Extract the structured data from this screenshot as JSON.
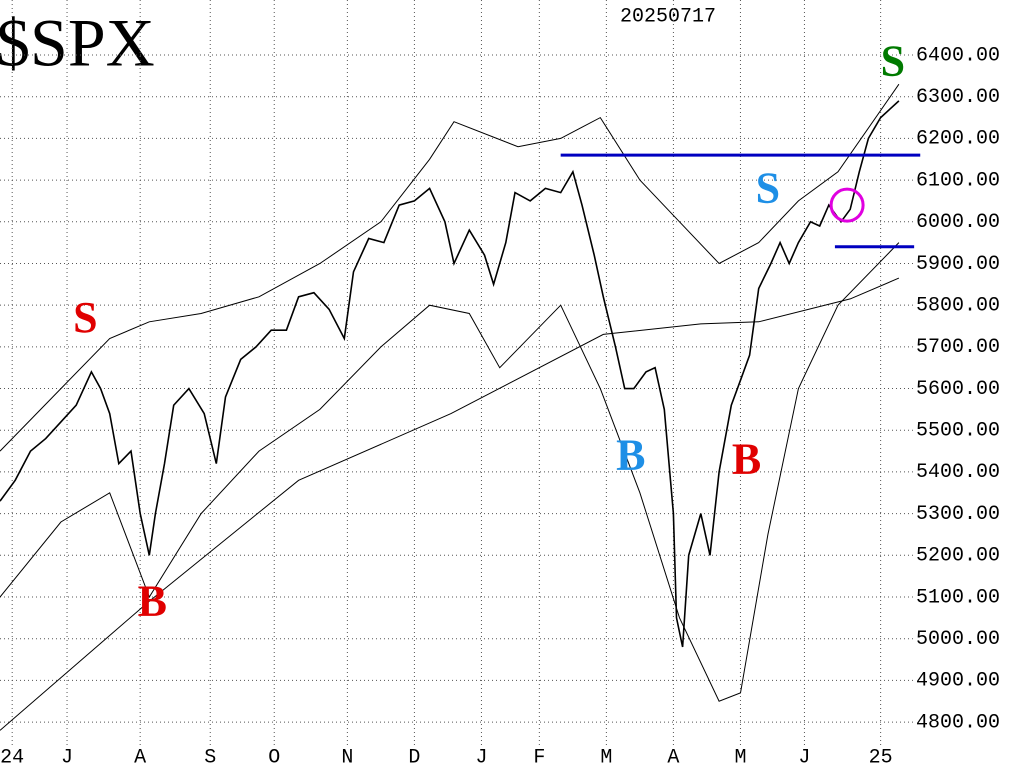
{
  "chart_data": {
    "type": "line",
    "title": "$SPX",
    "subtitle": "20250717",
    "xlim": [
      0,
      297
    ],
    "ylim": [
      4745,
      6532
    ],
    "xticks": [
      {
        "value": 4,
        "label": "24"
      },
      {
        "value": 22,
        "label": "J"
      },
      {
        "value": 46,
        "label": "A"
      },
      {
        "value": 69,
        "label": "S"
      },
      {
        "value": 90,
        "label": "O"
      },
      {
        "value": 114,
        "label": "N"
      },
      {
        "value": 136,
        "label": "D"
      },
      {
        "value": 158,
        "label": "J"
      },
      {
        "value": 177,
        "label": "F"
      },
      {
        "value": 199,
        "label": "M"
      },
      {
        "value": 221,
        "label": "A"
      },
      {
        "value": 243,
        "label": "M"
      },
      {
        "value": 264,
        "label": "J"
      },
      {
        "value": 289,
        "label": "25"
      }
    ],
    "yticks": [
      {
        "value": 4800,
        "label": "4800.00"
      },
      {
        "value": 4900,
        "label": "4900.00"
      },
      {
        "value": 5000,
        "label": "5000.00"
      },
      {
        "value": 5100,
        "label": "5100.00"
      },
      {
        "value": 5200,
        "label": "5200.00"
      },
      {
        "value": 5300,
        "label": "5300.00"
      },
      {
        "value": 5400,
        "label": "5400.00"
      },
      {
        "value": 5500,
        "label": "5500.00"
      },
      {
        "value": 5600,
        "label": "5600.00"
      },
      {
        "value": 5700,
        "label": "5700.00"
      },
      {
        "value": 5800,
        "label": "5800.00"
      },
      {
        "value": 5900,
        "label": "5900.00"
      },
      {
        "value": 6000,
        "label": "6000.00"
      },
      {
        "value": 6100,
        "label": "6100.00"
      },
      {
        "value": 6200,
        "label": "6200.00"
      },
      {
        "value": 6300,
        "label": "6300.00"
      },
      {
        "value": 6400,
        "label": "6400.00"
      }
    ],
    "grid": true,
    "series": [
      {
        "color": "#000000",
        "x": [
          0,
          5,
          10,
          15,
          20,
          25,
          30,
          33,
          36,
          39,
          43,
          46,
          49,
          51,
          54,
          57,
          62,
          67,
          71,
          74,
          79,
          84,
          89,
          94,
          98,
          103,
          108,
          113,
          116,
          121,
          126,
          131,
          136,
          141,
          146,
          149,
          154,
          159,
          162,
          166,
          169,
          174,
          179,
          184,
          188,
          191,
          195,
          198,
          202,
          205,
          208,
          212,
          215,
          218,
          221,
          222,
          224,
          226,
          230,
          233,
          236,
          240,
          243,
          246,
          249,
          253,
          256,
          259,
          262,
          266,
          269,
          272,
          276,
          279,
          282,
          285,
          289,
          292,
          295
        ],
        "values": [
          5330,
          5380,
          5450,
          5480,
          5520,
          5560,
          5640,
          5600,
          5540,
          5420,
          5450,
          5300,
          5200,
          5300,
          5420,
          5560,
          5600,
          5540,
          5420,
          5580,
          5670,
          5700,
          5740,
          5740,
          5820,
          5830,
          5790,
          5720,
          5880,
          5960,
          5950,
          6040,
          6050,
          6080,
          6000,
          5900,
          5980,
          5920,
          5850,
          5950,
          6070,
          6050,
          6080,
          6070,
          6120,
          6040,
          5920,
          5820,
          5700,
          5600,
          5600,
          5640,
          5650,
          5550,
          5300,
          5050,
          4980,
          5200,
          5300,
          5200,
          5400,
          5560,
          5620,
          5680,
          5840,
          5900,
          5950,
          5900,
          5950,
          6000,
          5990,
          6040,
          6000,
          6030,
          6120,
          6200,
          6250,
          6270,
          6290
        ]
      },
      {
        "color": "#000000",
        "x": [
          0,
          49,
          98,
          148,
          198,
          230,
          249,
          279,
          295
        ],
        "values": [
          4780,
          5090,
          5380,
          5540,
          5730,
          5755,
          5760,
          5815,
          5865
        ]
      },
      {
        "color": "#000000",
        "x": [
          0,
          20,
          36,
          49,
          66,
          85,
          105,
          125,
          141,
          149,
          170,
          184,
          197,
          210,
          223,
          236,
          249,
          262,
          275,
          295
        ],
        "values": [
          5450,
          5600,
          5720,
          5760,
          5780,
          5820,
          5900,
          6000,
          6150,
          6240,
          6180,
          6200,
          6250,
          6100,
          6000,
          5900,
          5950,
          6050,
          6120,
          6330
        ]
      },
      {
        "color": "#000000",
        "x": [
          0,
          20,
          36,
          49,
          66,
          85,
          105,
          125,
          141,
          154,
          164,
          184,
          197,
          210,
          223,
          236,
          243,
          252,
          262,
          275,
          295
        ],
        "values": [
          5100,
          5280,
          5350,
          5100,
          5300,
          5450,
          5550,
          5700,
          5800,
          5780,
          5650,
          5800,
          5600,
          5350,
          5050,
          4850,
          4870,
          5250,
          5600,
          5800,
          5950
        ]
      }
    ],
    "annotations": [
      {
        "text": "S",
        "color": "#e00000",
        "x": 28,
        "y": 5760
      },
      {
        "text": "B",
        "color": "#e00000",
        "x": 50,
        "y": 5080
      },
      {
        "text": "B",
        "color": "#1e8fe6",
        "x": 207,
        "y": 5430
      },
      {
        "text": "B",
        "color": "#e00000",
        "x": 245,
        "y": 5420
      },
      {
        "text": "S",
        "color": "#1e8fe6",
        "x": 252,
        "y": 6070
      },
      {
        "text": "S",
        "color": "#007a00",
        "x": 293,
        "y": 6375
      }
    ],
    "hlines": [
      {
        "color": "#0000c0",
        "y": 6160,
        "x": [
          184,
          302
        ]
      },
      {
        "color": "#0000c0",
        "y": 5940,
        "x": [
          274,
          300
        ]
      }
    ],
    "highlight": {
      "color": "#e000e0",
      "x": 278,
      "y": 6040
    }
  }
}
